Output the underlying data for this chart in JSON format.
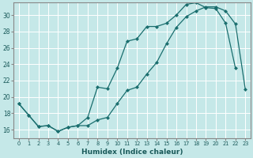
{
  "xlabel": "Humidex (Indice chaleur)",
  "bg_color": "#c5e8e8",
  "line_color": "#1a6e6e",
  "grid_color": "#ffffff",
  "xlim": [
    -0.5,
    23.5
  ],
  "ylim": [
    15.0,
    31.5
  ],
  "xticks": [
    0,
    1,
    2,
    3,
    4,
    5,
    6,
    7,
    8,
    9,
    10,
    11,
    12,
    13,
    14,
    15,
    16,
    17,
    18,
    19,
    20,
    21,
    22,
    23
  ],
  "yticks": [
    16,
    18,
    20,
    22,
    24,
    26,
    28,
    30
  ],
  "line1_x": [
    0,
    1,
    2,
    3,
    4,
    5,
    6,
    7,
    8,
    9,
    10,
    11,
    12,
    13,
    14,
    15,
    16,
    17,
    18,
    19,
    20,
    21,
    22
  ],
  "line1_y": [
    19.2,
    17.8,
    16.4,
    16.5,
    15.8,
    16.3,
    16.5,
    17.5,
    21.2,
    21.0,
    23.5,
    26.8,
    27.1,
    28.6,
    28.6,
    29.0,
    30.0,
    31.3,
    31.5,
    30.9,
    30.8,
    29.0,
    23.5
  ],
  "line2_x": [
    0,
    1,
    2,
    3,
    4,
    5,
    6,
    7,
    8,
    9,
    10,
    11,
    12,
    13,
    14,
    15,
    16,
    17,
    18,
    19,
    20,
    21,
    22,
    23
  ],
  "line2_y": [
    19.2,
    17.8,
    16.4,
    16.5,
    15.8,
    16.3,
    16.5,
    16.5,
    17.2,
    17.5,
    19.2,
    20.8,
    21.2,
    22.8,
    24.2,
    26.5,
    28.5,
    29.8,
    30.5,
    31.0,
    31.0,
    30.5,
    28.9,
    20.9
  ]
}
